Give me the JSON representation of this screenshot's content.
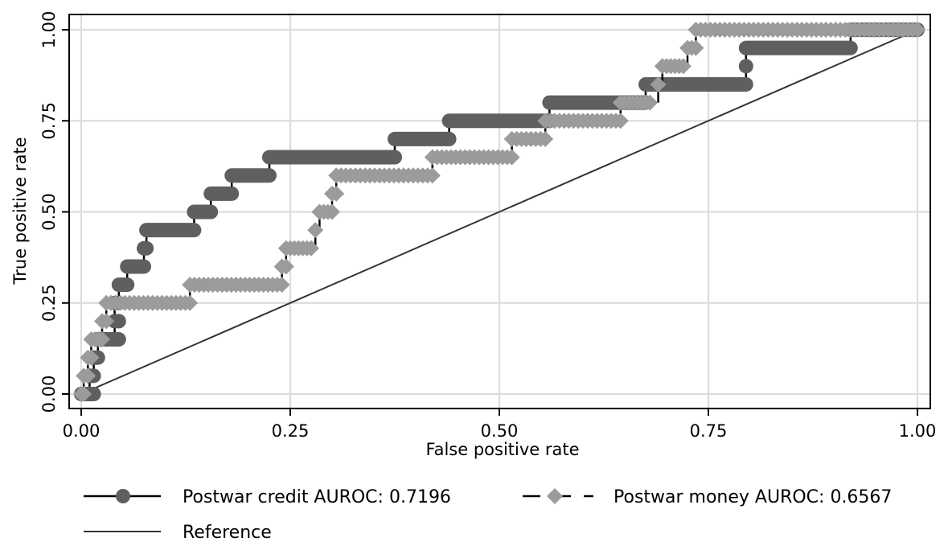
{
  "chart_data": {
    "type": "line",
    "xlabel": "False positive rate",
    "ylabel": "True positive rate",
    "xlim": [
      0,
      1
    ],
    "ylim": [
      0,
      1
    ],
    "xticks": [
      "0.00",
      "0.25",
      "0.50",
      "0.75",
      "1.00"
    ],
    "yticks": [
      "0.00",
      "0.25",
      "0.50",
      "0.75",
      "1.00"
    ],
    "grid": true,
    "legend_position": "bottom",
    "series": [
      {
        "name": "Postwar credit AUROC: 0.7196",
        "color": "#5f5f5f",
        "marker": "circle",
        "line_style": "solid",
        "steps": [
          {
            "y": 0.0,
            "x0": 0.0,
            "x1": 0.015
          },
          {
            "y": 0.05,
            "x0": 0.01,
            "x1": 0.015
          },
          {
            "y": 0.1,
            "x0": 0.015,
            "x1": 0.02
          },
          {
            "y": 0.15,
            "x0": 0.02,
            "x1": 0.045
          },
          {
            "y": 0.2,
            "x0": 0.04,
            "x1": 0.045
          },
          {
            "y": 0.25,
            "x0": 0.04,
            "x1": 0.045
          },
          {
            "y": 0.3,
            "x0": 0.045,
            "x1": 0.055
          },
          {
            "y": 0.35,
            "x0": 0.055,
            "x1": 0.075
          },
          {
            "y": 0.4,
            "x0": 0.075,
            "x1": 0.078
          },
          {
            "y": 0.45,
            "x0": 0.078,
            "x1": 0.135
          },
          {
            "y": 0.5,
            "x0": 0.135,
            "x1": 0.155
          },
          {
            "y": 0.55,
            "x0": 0.155,
            "x1": 0.18
          },
          {
            "y": 0.6,
            "x0": 0.18,
            "x1": 0.225
          },
          {
            "y": 0.65,
            "x0": 0.225,
            "x1": 0.375
          },
          {
            "y": 0.7,
            "x0": 0.375,
            "x1": 0.44
          },
          {
            "y": 0.75,
            "x0": 0.44,
            "x1": 0.56
          },
          {
            "y": 0.8,
            "x0": 0.56,
            "x1": 0.675
          },
          {
            "y": 0.85,
            "x0": 0.675,
            "x1": 0.795
          },
          {
            "y": 0.9,
            "x0": 0.795,
            "x1": 0.795
          },
          {
            "y": 0.95,
            "x0": 0.795,
            "x1": 0.92
          },
          {
            "y": 1.0,
            "x0": 0.92,
            "x1": 1.0
          }
        ]
      },
      {
        "name": "Postwar money AUROC: 0.6567",
        "color": "#9b9b9b",
        "marker": "diamond",
        "line_style": "dashed",
        "steps": [
          {
            "y": 0.0,
            "x0": 0.0,
            "x1": 0.003
          },
          {
            "y": 0.05,
            "x0": 0.003,
            "x1": 0.008
          },
          {
            "y": 0.1,
            "x0": 0.008,
            "x1": 0.012
          },
          {
            "y": 0.15,
            "x0": 0.012,
            "x1": 0.025
          },
          {
            "y": 0.2,
            "x0": 0.025,
            "x1": 0.03
          },
          {
            "y": 0.25,
            "x0": 0.03,
            "x1": 0.13
          },
          {
            "y": 0.3,
            "x0": 0.13,
            "x1": 0.24
          },
          {
            "y": 0.35,
            "x0": 0.24,
            "x1": 0.245
          },
          {
            "y": 0.4,
            "x0": 0.245,
            "x1": 0.275
          },
          {
            "y": 0.45,
            "x0": 0.28,
            "x1": 0.28
          },
          {
            "y": 0.5,
            "x0": 0.285,
            "x1": 0.3
          },
          {
            "y": 0.55,
            "x0": 0.3,
            "x1": 0.305
          },
          {
            "y": 0.6,
            "x0": 0.305,
            "x1": 0.42
          },
          {
            "y": 0.65,
            "x0": 0.42,
            "x1": 0.515
          },
          {
            "y": 0.7,
            "x0": 0.515,
            "x1": 0.555
          },
          {
            "y": 0.75,
            "x0": 0.555,
            "x1": 0.645
          },
          {
            "y": 0.8,
            "x0": 0.645,
            "x1": 0.68
          },
          {
            "y": 0.85,
            "x0": 0.69,
            "x1": 0.69
          },
          {
            "y": 0.9,
            "x0": 0.695,
            "x1": 0.72
          },
          {
            "y": 0.95,
            "x0": 0.725,
            "x1": 0.735
          },
          {
            "y": 1.0,
            "x0": 0.735,
            "x1": 1.0
          }
        ]
      },
      {
        "name": "Reference",
        "color": "#333333",
        "marker": "none",
        "line_style": "solid",
        "x": [
          0,
          1
        ],
        "y": [
          0,
          1
        ]
      }
    ]
  }
}
